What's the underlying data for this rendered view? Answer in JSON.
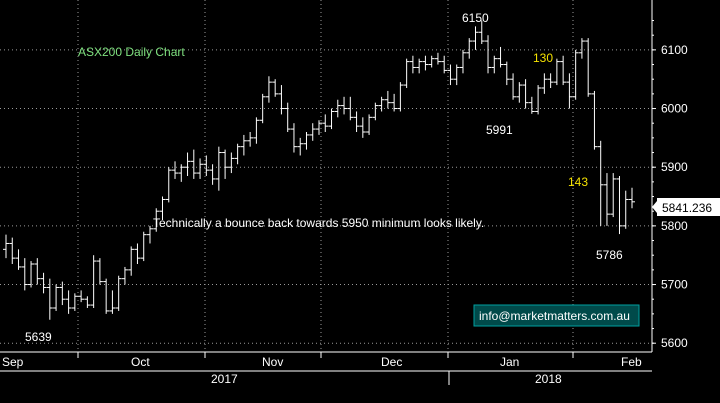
{
  "chart_data": {
    "type": "ohlc",
    "title": "ASX200 Daily Chart",
    "ylim": [
      5585,
      6185
    ],
    "y_ticks": [
      "6100",
      "6000",
      "5900",
      "5800",
      "5700",
      "5600"
    ],
    "x_labels": [
      "Sep",
      "Oct",
      "Nov",
      "Dec",
      "Jan",
      "Feb"
    ],
    "year_labels": [
      "2017",
      "2018"
    ],
    "last_value": "5841.236",
    "annotations": {
      "high": "6150",
      "low_sep": "5639",
      "dip_jan": "5991",
      "drop_130": "130",
      "drop_143": "143",
      "low_feb": "5786",
      "commentary": "Technically a bounce back towards 5950 minimum looks likely."
    },
    "watermark": "info@marketmatters.com.au",
    "bars": [
      [
        5760,
        5785,
        5745,
        5770
      ],
      [
        5770,
        5780,
        5735,
        5745
      ],
      [
        5745,
        5760,
        5725,
        5730
      ],
      [
        5730,
        5745,
        5690,
        5700
      ],
      [
        5700,
        5740,
        5695,
        5735
      ],
      [
        5735,
        5745,
        5700,
        5710
      ],
      [
        5710,
        5720,
        5685,
        5695
      ],
      [
        5695,
        5710,
        5640,
        5660
      ],
      [
        5660,
        5700,
        5655,
        5695
      ],
      [
        5695,
        5705,
        5665,
        5675
      ],
      [
        5675,
        5690,
        5650,
        5660
      ],
      [
        5660,
        5685,
        5655,
        5680
      ],
      [
        5680,
        5690,
        5670,
        5675
      ],
      [
        5675,
        5680,
        5660,
        5665
      ],
      [
        5665,
        5750,
        5660,
        5740
      ],
      [
        5740,
        5745,
        5700,
        5705
      ],
      [
        5705,
        5710,
        5650,
        5655
      ],
      [
        5655,
        5690,
        5650,
        5660
      ],
      [
        5660,
        5715,
        5655,
        5710
      ],
      [
        5710,
        5730,
        5700,
        5725
      ],
      [
        5725,
        5765,
        5715,
        5760
      ],
      [
        5760,
        5770,
        5735,
        5745
      ],
      [
        5745,
        5790,
        5740,
        5785
      ],
      [
        5785,
        5800,
        5770,
        5795
      ],
      [
        5795,
        5830,
        5790,
        5825
      ],
      [
        5825,
        5850,
        5810,
        5845
      ],
      [
        5845,
        5900,
        5840,
        5895
      ],
      [
        5895,
        5910,
        5880,
        5890
      ],
      [
        5890,
        5905,
        5875,
        5900
      ],
      [
        5900,
        5925,
        5885,
        5910
      ],
      [
        5910,
        5930,
        5880,
        5890
      ],
      [
        5890,
        5915,
        5880,
        5905
      ],
      [
        5905,
        5920,
        5885,
        5895
      ],
      [
        5895,
        5905,
        5870,
        5880
      ],
      [
        5880,
        5935,
        5860,
        5925
      ],
      [
        5925,
        5930,
        5880,
        5900
      ],
      [
        5900,
        5925,
        5890,
        5915
      ],
      [
        5915,
        5940,
        5905,
        5935
      ],
      [
        5935,
        5955,
        5920,
        5945
      ],
      [
        5945,
        5960,
        5935,
        5950
      ],
      [
        5950,
        5985,
        5940,
        5980
      ],
      [
        5980,
        6025,
        5975,
        6020
      ],
      [
        6020,
        6055,
        6010,
        6045
      ],
      [
        6045,
        6050,
        6020,
        6025
      ],
      [
        6025,
        6040,
        5990,
        6000
      ],
      [
        6000,
        6010,
        5960,
        5965
      ],
      [
        5965,
        5975,
        5925,
        5935
      ],
      [
        5935,
        5950,
        5920,
        5940
      ],
      [
        5940,
        5960,
        5930,
        5955
      ],
      [
        5955,
        5975,
        5945,
        5965
      ],
      [
        5965,
        5980,
        5955,
        5975
      ],
      [
        5975,
        5990,
        5960,
        5970
      ],
      [
        5970,
        6000,
        5965,
        5995
      ],
      [
        5995,
        6015,
        5985,
        6005
      ],
      [
        6005,
        6020,
        5990,
        6000
      ],
      [
        6000,
        6020,
        5980,
        5985
      ],
      [
        5985,
        5995,
        5960,
        5970
      ],
      [
        5970,
        5985,
        5950,
        5960
      ],
      [
        5960,
        5990,
        5955,
        5985
      ],
      [
        5985,
        6010,
        5980,
        6005
      ],
      [
        6005,
        6020,
        5995,
        6015
      ],
      [
        6015,
        6030,
        6000,
        6010
      ],
      [
        6010,
        6025,
        5995,
        6000
      ],
      [
        6000,
        6045,
        5995,
        6040
      ],
      [
        6040,
        6085,
        6035,
        6080
      ],
      [
        6080,
        6090,
        6060,
        6070
      ],
      [
        6070,
        6085,
        6060,
        6080
      ],
      [
        6080,
        6090,
        6065,
        6075
      ],
      [
        6075,
        6090,
        6070,
        6085
      ],
      [
        6085,
        6095,
        6075,
        6080
      ],
      [
        6080,
        6090,
        6060,
        6065
      ],
      [
        6065,
        6075,
        6040,
        6050
      ],
      [
        6050,
        6075,
        6040,
        6070
      ],
      [
        6070,
        6100,
        6060,
        6095
      ],
      [
        6095,
        6120,
        6085,
        6115
      ],
      [
        6115,
        6140,
        6100,
        6130
      ],
      [
        6130,
        6150,
        6110,
        6115
      ],
      [
        6115,
        6125,
        6060,
        6070
      ],
      [
        6070,
        6090,
        6060,
        6085
      ],
      [
        6085,
        6105,
        6070,
        6075
      ],
      [
        6075,
        6080,
        6040,
        6050
      ],
      [
        6050,
        6060,
        6015,
        6020
      ],
      [
        6020,
        6045,
        6010,
        6040
      ],
      [
        6040,
        6050,
        6000,
        6010
      ],
      [
        6010,
        6020,
        5991,
        5995
      ],
      [
        5995,
        6040,
        5990,
        6035
      ],
      [
        6035,
        6060,
        6025,
        6050
      ],
      [
        6050,
        6060,
        6035,
        6045
      ],
      [
        6045,
        6085,
        6040,
        6080
      ],
      [
        6080,
        6090,
        6040,
        6045
      ],
      [
        6045,
        6060,
        6000,
        6020
      ],
      [
        6020,
        6100,
        6015,
        6095
      ],
      [
        6095,
        6120,
        6085,
        6115
      ],
      [
        6115,
        6120,
        6020,
        6025
      ],
      [
        6025,
        6030,
        5930,
        5935
      ],
      [
        5935,
        5945,
        5800,
        5870
      ],
      [
        5870,
        5890,
        5800,
        5820
      ],
      [
        5820,
        5890,
        5815,
        5880
      ],
      [
        5880,
        5885,
        5786,
        5800
      ],
      [
        5800,
        5860,
        5795,
        5845
      ],
      [
        5845,
        5865,
        5830,
        5841
      ]
    ]
  }
}
